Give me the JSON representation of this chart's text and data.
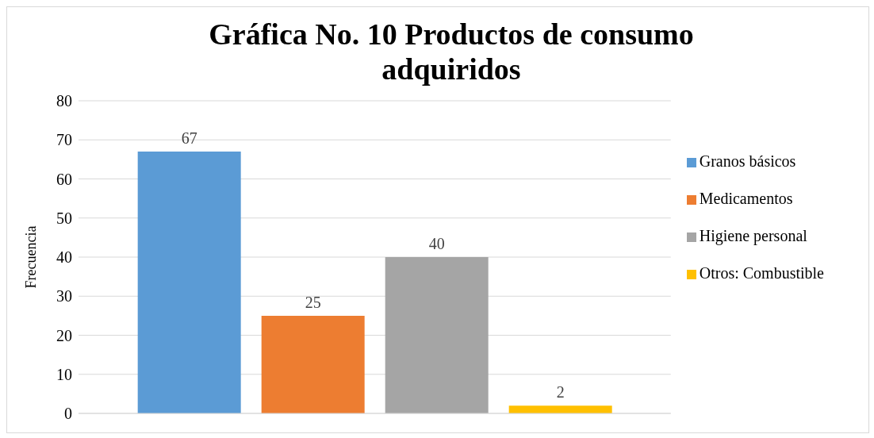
{
  "chart_data": {
    "type": "bar",
    "title": "Gráfica No. 10 Productos de consumo adquiridos",
    "ylabel": "Frecuencia",
    "categories": [
      null
    ],
    "series": [
      {
        "name": "Granos básicos",
        "color": "#5b9bd5",
        "values": [
          67
        ]
      },
      {
        "name": "Medicamentos",
        "color": "#ed7d31",
        "values": [
          25
        ]
      },
      {
        "name": "Higiene personal",
        "color": "#a5a5a5",
        "values": [
          40
        ]
      },
      {
        "name": "Otros: Combustible",
        "color": "#ffc000",
        "values": [
          2
        ]
      }
    ],
    "ylim": [
      0,
      80
    ],
    "yticks": [
      0,
      10,
      20,
      30,
      40,
      50,
      60,
      70,
      80
    ],
    "grid": "y",
    "legend": "right",
    "data_labels": true
  }
}
